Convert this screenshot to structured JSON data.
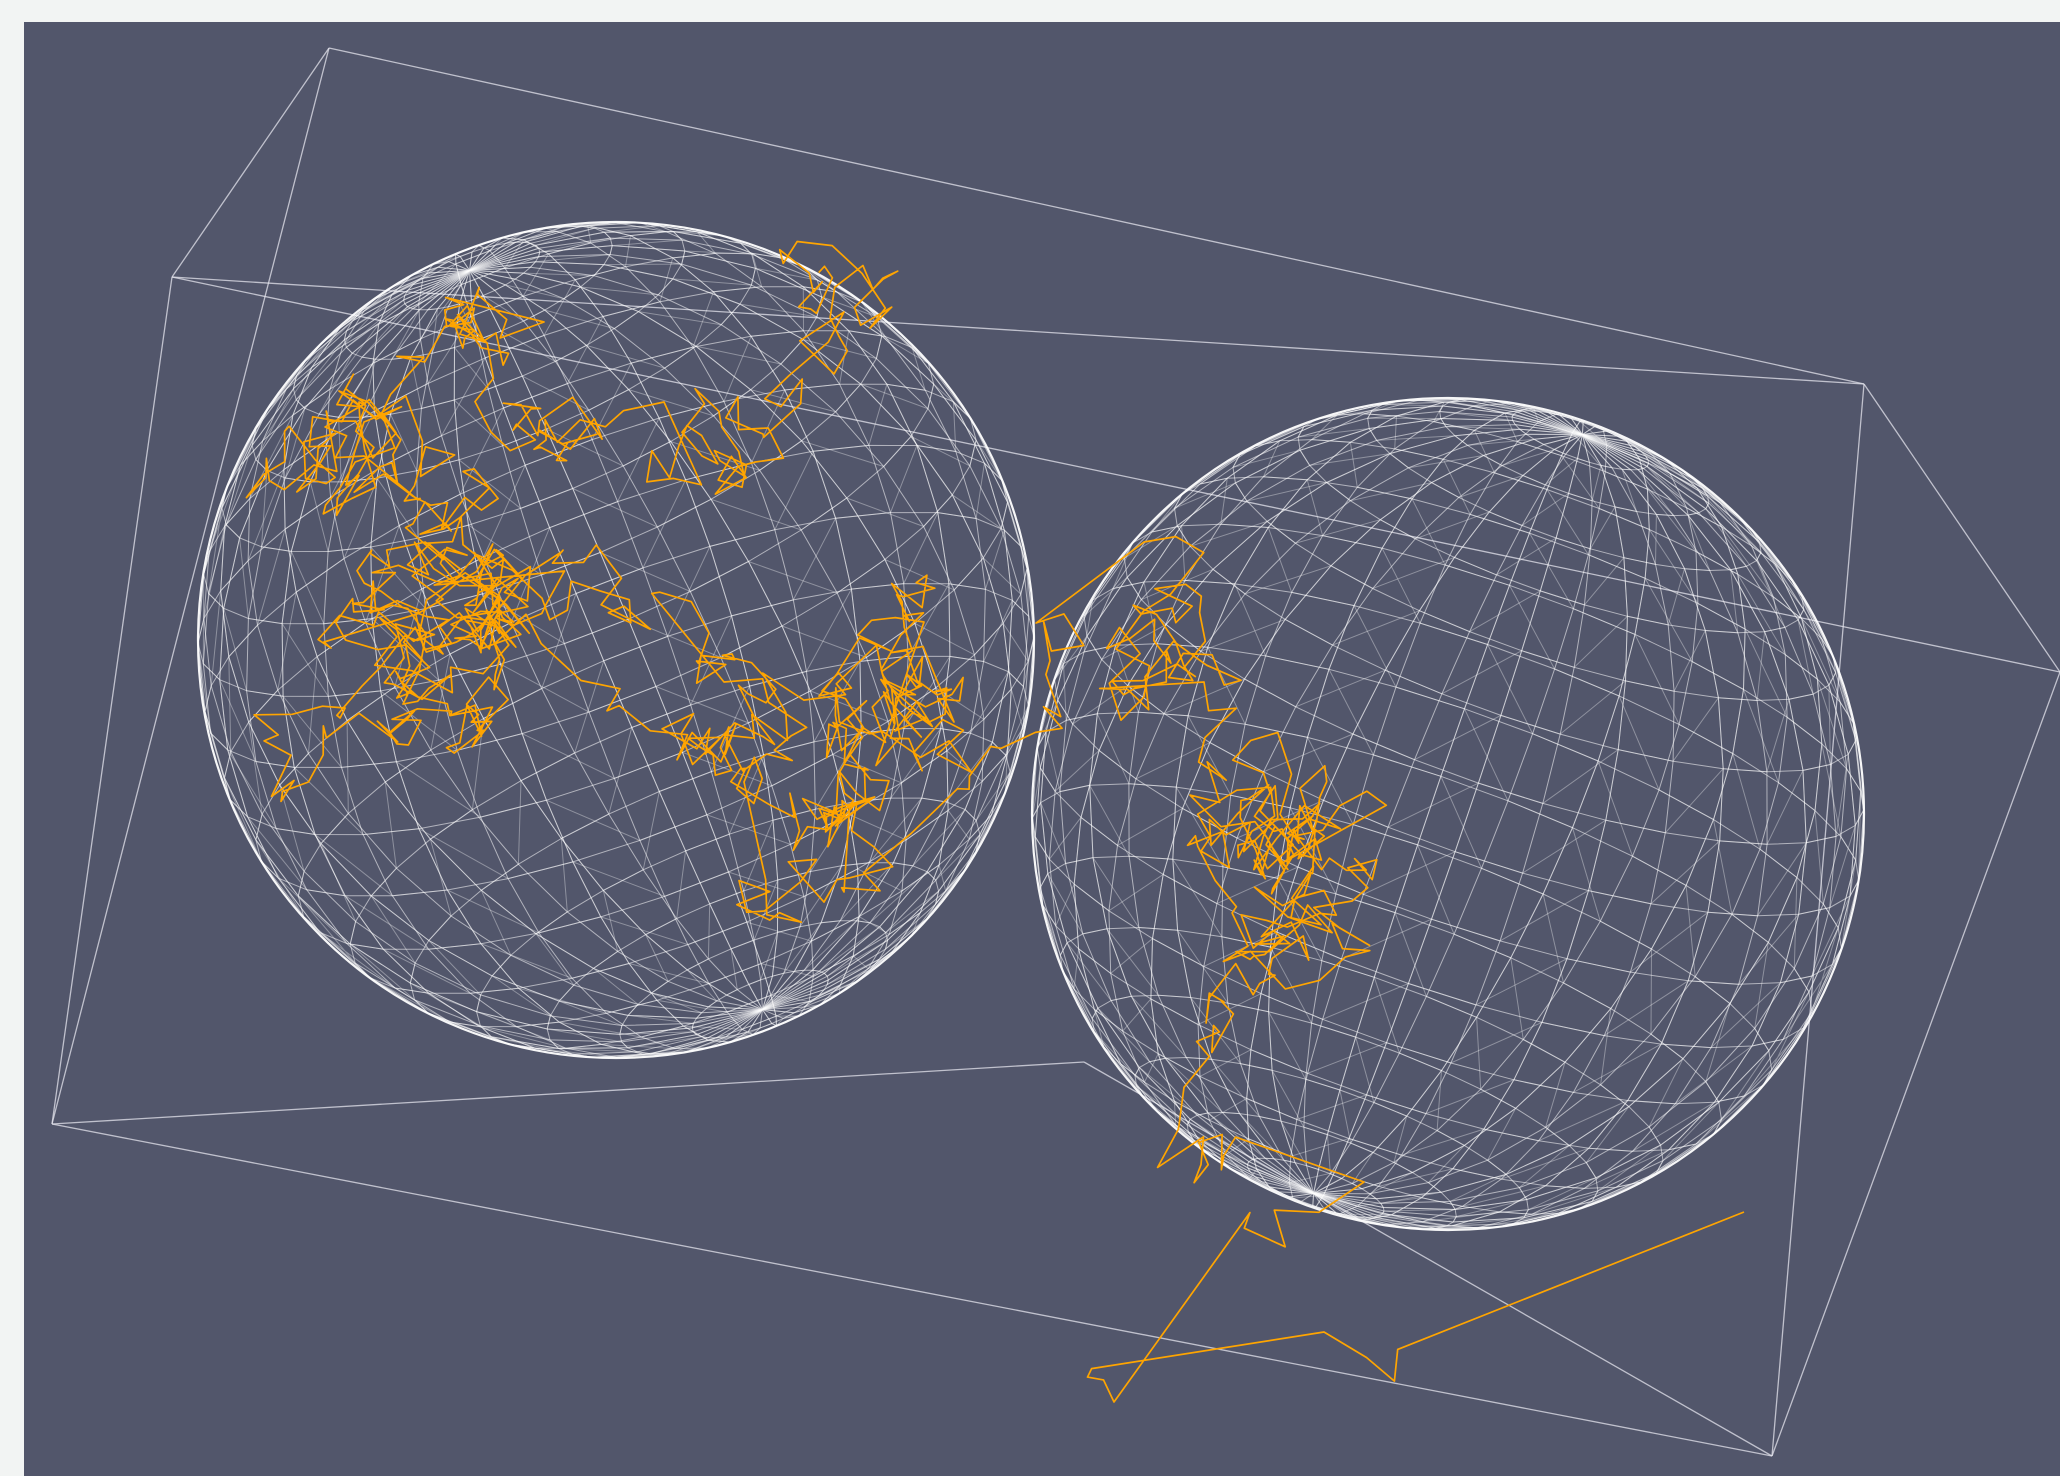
{
  "scene": {
    "background_color": "#52566b",
    "page_color": "#f2f4f3",
    "wireframe_color": "#ffffff",
    "path_color": "#ffa500",
    "objects": [
      "bounding-box",
      "sphere-1",
      "sphere-2",
      "random-walk-path"
    ]
  }
}
